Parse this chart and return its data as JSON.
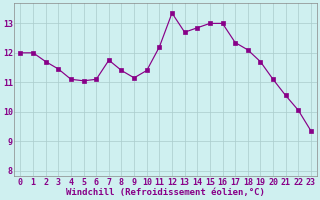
{
  "x": [
    0,
    1,
    2,
    3,
    4,
    5,
    6,
    7,
    8,
    9,
    10,
    11,
    12,
    13,
    14,
    15,
    16,
    17,
    18,
    19,
    20,
    21,
    22,
    23
  ],
  "y": [
    12.0,
    12.0,
    11.7,
    11.45,
    11.1,
    11.05,
    11.1,
    11.75,
    11.4,
    11.15,
    11.4,
    12.2,
    13.35,
    12.7,
    12.85,
    13.0,
    13.0,
    12.35,
    12.1,
    11.7,
    11.1,
    10.55,
    10.05,
    9.35
  ],
  "line_color": "#880088",
  "marker": "s",
  "marker_size": 2.2,
  "bg_color": "#cff0f0",
  "grid_color": "#aacccc",
  "xlabel": "Windchill (Refroidissement éolien,°C)",
  "ylim": [
    7.8,
    13.7
  ],
  "xlim": [
    -0.5,
    23.5
  ],
  "yticks": [
    8,
    9,
    10,
    11,
    12,
    13
  ],
  "xticks": [
    0,
    1,
    2,
    3,
    4,
    5,
    6,
    7,
    8,
    9,
    10,
    11,
    12,
    13,
    14,
    15,
    16,
    17,
    18,
    19,
    20,
    21,
    22,
    23
  ],
  "tick_fontsize": 6.0,
  "xlabel_fontsize": 6.5,
  "label_color": "#880088",
  "spine_color": "#888888"
}
